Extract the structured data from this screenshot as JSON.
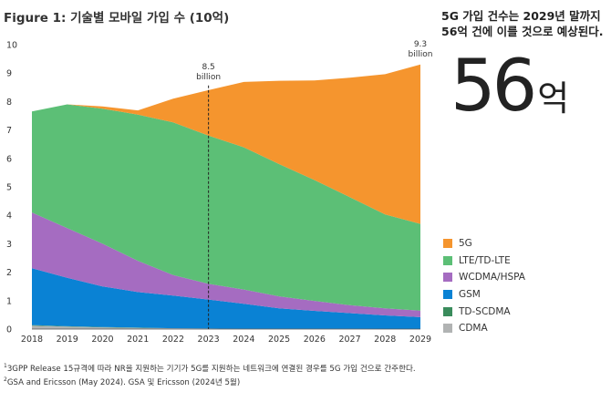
{
  "header": {
    "title": "Figure 1: 기술별 모바일 가입 수 (10억)"
  },
  "callout": {
    "headline": "5G 가입 건수는 2029년 말까지 56억 건에 이를 것으로 예상된다.",
    "big_number": "56",
    "big_unit": "억"
  },
  "footnotes": {
    "note1_mark": "1",
    "note1": "3GPP Release 15규격에 따라 NR을 지원하는 기기가 5G를 지원하는 네트워크에 연결된 경우를 5G 가입 건으로 간주한다.",
    "note2_mark": "2",
    "note2": "GSA and Ericsson (May 2024). GSA 및 Ericsson (2024년 5월)"
  },
  "chart_data": {
    "type": "area",
    "stacked": true,
    "title": "Figure 1: 기술별 모바일 가입 수 (10억)",
    "x": [
      2018,
      2019,
      2020,
      2021,
      2022,
      2023,
      2024,
      2025,
      2026,
      2027,
      2028,
      2029
    ],
    "ylim": [
      0,
      10
    ],
    "yticks": [
      0,
      1,
      2,
      3,
      4,
      5,
      6,
      7,
      8,
      9,
      10
    ],
    "grid": false,
    "legend_position": "right",
    "series": [
      {
        "name": "CDMA",
        "color": "#b1b3b3",
        "values": [
          0.12,
          0.09,
          0.06,
          0.04,
          0.03,
          0.02,
          0.01,
          0.01,
          0.01,
          0.01,
          0.0,
          0.0
        ]
      },
      {
        "name": "TD-SCDMA",
        "color": "#3a8c5c",
        "values": [
          0.02,
          0.01,
          0.01,
          0.01,
          0.0,
          0.0,
          0.0,
          0.0,
          0.0,
          0.0,
          0.0,
          0.0
        ]
      },
      {
        "name": "GSM",
        "color": "#0a82d4",
        "values": [
          2.0,
          1.7,
          1.43,
          1.25,
          1.15,
          1.02,
          0.88,
          0.72,
          0.63,
          0.55,
          0.48,
          0.42
        ]
      },
      {
        "name": "WCDMA/HSPA",
        "color": "#a56cc1",
        "values": [
          1.96,
          1.75,
          1.5,
          1.1,
          0.72,
          0.55,
          0.5,
          0.42,
          0.35,
          0.28,
          0.25,
          0.23
        ]
      },
      {
        "name": "LTE/TD-LTE",
        "color": "#5cbf76",
        "values": [
          3.55,
          4.35,
          4.75,
          5.14,
          5.37,
          5.21,
          5.0,
          4.65,
          4.25,
          3.8,
          3.3,
          3.05
        ]
      },
      {
        "name": "5G",
        "color": "#f5952e",
        "values": [
          0.0,
          0.0,
          0.08,
          0.15,
          0.83,
          1.6,
          2.3,
          2.93,
          3.5,
          4.2,
          4.93,
          5.6
        ]
      }
    ],
    "annotations": [
      {
        "x": 2023,
        "total": 8.5,
        "line1": "8.5",
        "line2": "billion",
        "dashed_line": true
      },
      {
        "x": 2029,
        "total": 9.3,
        "line1": "9.3",
        "line2": "billion",
        "dashed_line": false
      }
    ]
  }
}
